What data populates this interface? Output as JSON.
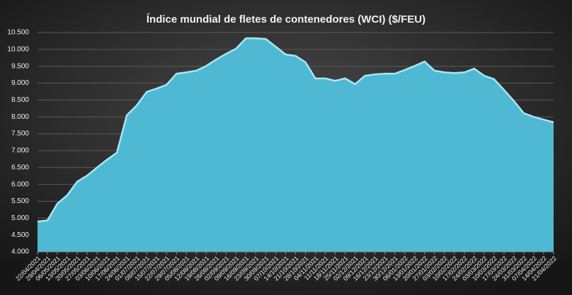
{
  "chart_data": {
    "type": "area",
    "title": "Índice mundial de fletes de contenedores (WCI) ($/FEU)",
    "categories": [
      "22/04/2021",
      "29/04/2021",
      "06/05/2021",
      "13/05/2021",
      "20/05/2021",
      "27/05/2021",
      "03/06/2021",
      "10/06/2021",
      "17/06/2021",
      "24/06/2021",
      "01/07/2021",
      "08/07/2021",
      "15/07/2021",
      "22/07/2021",
      "29/07/2021",
      "05/08/2021",
      "12/08/2021",
      "19/08/2021",
      "26/08/2021",
      "02/09/2021",
      "09/09/2021",
      "16/09/2021",
      "23/09/2021",
      "30/09/2021",
      "07/10/2021",
      "14/10/2021",
      "21/10/2021",
      "28/10/2021",
      "04/11/2021",
      "11/11/2021",
      "18/11/2021",
      "25/11/2021",
      "02/12/2021",
      "09/12/2021",
      "16/12/2021",
      "23/12/2021",
      "30/12/2021",
      "06/01/2022",
      "13/01/2022",
      "20/01/2022",
      "27/01/2022",
      "03/02/2022",
      "10/02/2022",
      "17/02/2022",
      "24/02/2022",
      "03/03/2022",
      "10/03/2022",
      "17/03/2022",
      "24/03/2022",
      "31/03/2022",
      "07/04/2022",
      "14/04/2022",
      "21/04/2022"
    ],
    "values": [
      4900,
      4930,
      5430,
      5680,
      6080,
      6260,
      6500,
      6730,
      6940,
      8050,
      8340,
      8740,
      8840,
      8950,
      9280,
      9320,
      9370,
      9510,
      9700,
      9870,
      10020,
      10330,
      10330,
      10310,
      10080,
      9850,
      9810,
      9620,
      9140,
      9140,
      9070,
      9140,
      8970,
      9220,
      9260,
      9280,
      9280,
      9390,
      9510,
      9640,
      9370,
      9320,
      9300,
      9320,
      9430,
      9220,
      9120,
      8800,
      8470,
      8110,
      8000,
      7920,
      7840
    ],
    "color": "#4fb9d3",
    "ylim": [
      4000,
      10500
    ],
    "yticks": [
      {
        "value": 4000,
        "label": "4.000"
      },
      {
        "value": 4500,
        "label": "4.500"
      },
      {
        "value": 5000,
        "label": "5.000"
      },
      {
        "value": 5500,
        "label": "5.500"
      },
      {
        "value": 6000,
        "label": "6.000"
      },
      {
        "value": 6500,
        "label": "6.500"
      },
      {
        "value": 7000,
        "label": "7.000"
      },
      {
        "value": 7500,
        "label": "7.500"
      },
      {
        "value": 8000,
        "label": "8.000"
      },
      {
        "value": 8500,
        "label": "8.500"
      },
      {
        "value": 9000,
        "label": "9.000"
      },
      {
        "value": 9500,
        "label": "9.500"
      },
      {
        "value": 10000,
        "label": "10.000"
      },
      {
        "value": 10500,
        "label": "10.500"
      }
    ],
    "grid": true
  }
}
